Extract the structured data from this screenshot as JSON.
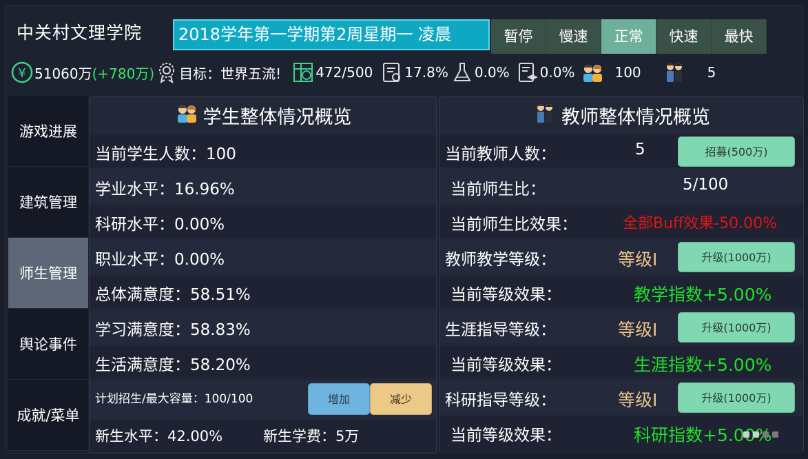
{
  "header": {
    "school_name": "中关村文理学院",
    "date_text": "2018学年第一学期第2周星期一 凌晨",
    "speeds": [
      {
        "label": "暂停",
        "active": false
      },
      {
        "label": "慢速",
        "active": false
      },
      {
        "label": "正常",
        "active": true
      },
      {
        "label": "快速",
        "active": false
      },
      {
        "label": "最快",
        "active": false
      }
    ]
  },
  "stats": {
    "money": "51060万",
    "money_gain": "(+780万)",
    "goal": "目标：世界五流!",
    "capacity": "472/500",
    "academic": "17.8%",
    "research": "0.0%",
    "career": "0.0%",
    "students": "100",
    "teachers": "5"
  },
  "sidebar": {
    "items": [
      {
        "label": "游戏进展",
        "active": false
      },
      {
        "label": "建筑管理",
        "active": false
      },
      {
        "label": "师生管理",
        "active": true
      },
      {
        "label": "舆论事件",
        "active": false
      },
      {
        "label": "成就/菜单",
        "active": false
      }
    ]
  },
  "students_panel": {
    "title": "学生整体情况概览",
    "rows": [
      "当前学生人数：100",
      "学业水平：16.96%",
      "科研水平：0.00%",
      "职业水平：0.00%",
      "总体满意度：58.51%",
      "学习满意度：58.83%",
      "生活满意度：58.20%"
    ],
    "enroll_label": "计划招生/最大容量：100/100",
    "increase_label": "增加",
    "decrease_label": "减少",
    "freshman_level": "新生水平：42.00%",
    "tuition": "新生学费：5万"
  },
  "teachers_panel": {
    "title": "教师整体情况概览",
    "count_label": "当前教师人数：",
    "count_value": "5",
    "recruit_label": "招募(500万)",
    "ratio_label": "当前师生比：",
    "ratio_value": "5/100",
    "ratio_effect_label": "当前师生比效果：",
    "ratio_effect_value": "全部Buff效果-50.00%",
    "teaching_label": "教师教学等级：",
    "teaching_level": "等级I",
    "teaching_upgrade": "升级(1000万)",
    "teaching_effect_label": "当前等级效果：",
    "teaching_effect_value": "教学指数+5.00%",
    "career_label": "生涯指导等级：",
    "career_level": "等级I",
    "career_upgrade": "升级(1000万)",
    "career_effect_label": "当前等级效果：",
    "career_effect_value": "生涯指数+5.00%",
    "research_label": "科研指导等级：",
    "research_level": "等级I",
    "research_upgrade": "升级(1000万)",
    "research_effect_label": "当前等级效果：",
    "research_effect_value": "科研指数+5.00%"
  },
  "colors": {
    "accent_cyan": "#0fa8c3",
    "speed_active": "#6fb09c",
    "button_green": "#7fd8b2",
    "gain_green": "#37e46a",
    "penalty_red": "#e01515",
    "effect_green": "#1ee02a",
    "level_gold": "#e8c38a"
  }
}
